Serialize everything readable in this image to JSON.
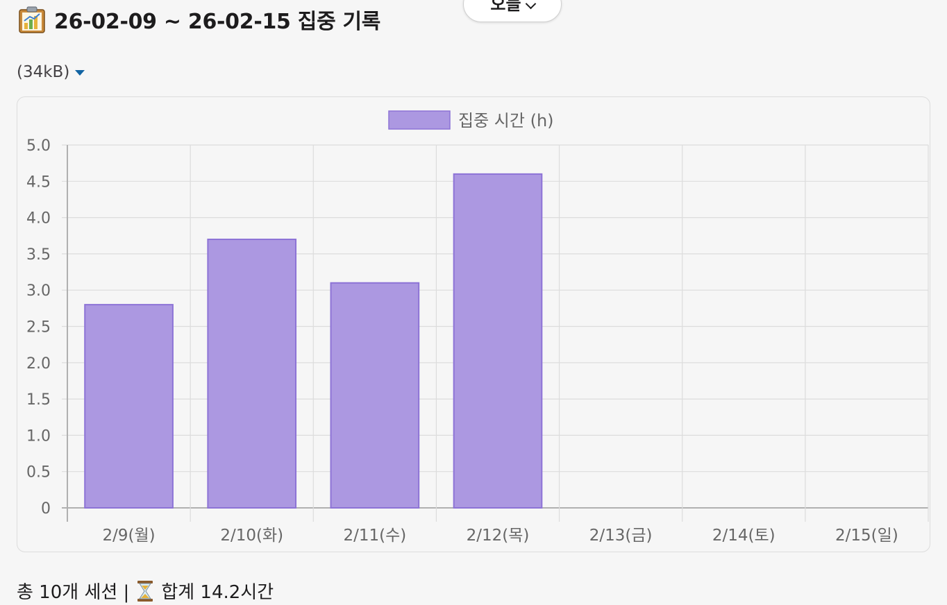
{
  "header": {
    "title": "26-02-09 ~ 26-02-15 집중 기록",
    "icon": "bar-chart-clipboard-icon"
  },
  "pill": {
    "label": "오늘"
  },
  "attachment": {
    "size_label": "(34kB)"
  },
  "footer": {
    "sessions_label": "총 10개 세션 |",
    "total_label": "합계 14.2시간",
    "icon": "hourglass-icon"
  },
  "colors": {
    "bar_fill": "#ac98e1",
    "bar_border": "#8d73d6",
    "grid": "#dcdcdc",
    "axis_text": "#666666",
    "link": "#1264a3"
  },
  "chart_data": {
    "type": "bar",
    "categories": [
      "2/9(월)",
      "2/10(화)",
      "2/11(수)",
      "2/12(목)",
      "2/13(금)",
      "2/14(토)",
      "2/15(일)"
    ],
    "series": [
      {
        "name": "집중 시간 (h)",
        "values": [
          2.8,
          3.7,
          3.1,
          4.6,
          0,
          0,
          0
        ]
      }
    ],
    "ylim": [
      0,
      5.0
    ],
    "yticks": [
      "0",
      "0.5",
      "1.0",
      "1.5",
      "2.0",
      "2.5",
      "3.0",
      "3.5",
      "4.0",
      "4.5",
      "5.0"
    ],
    "grid": true,
    "legend_position": "top-center"
  }
}
